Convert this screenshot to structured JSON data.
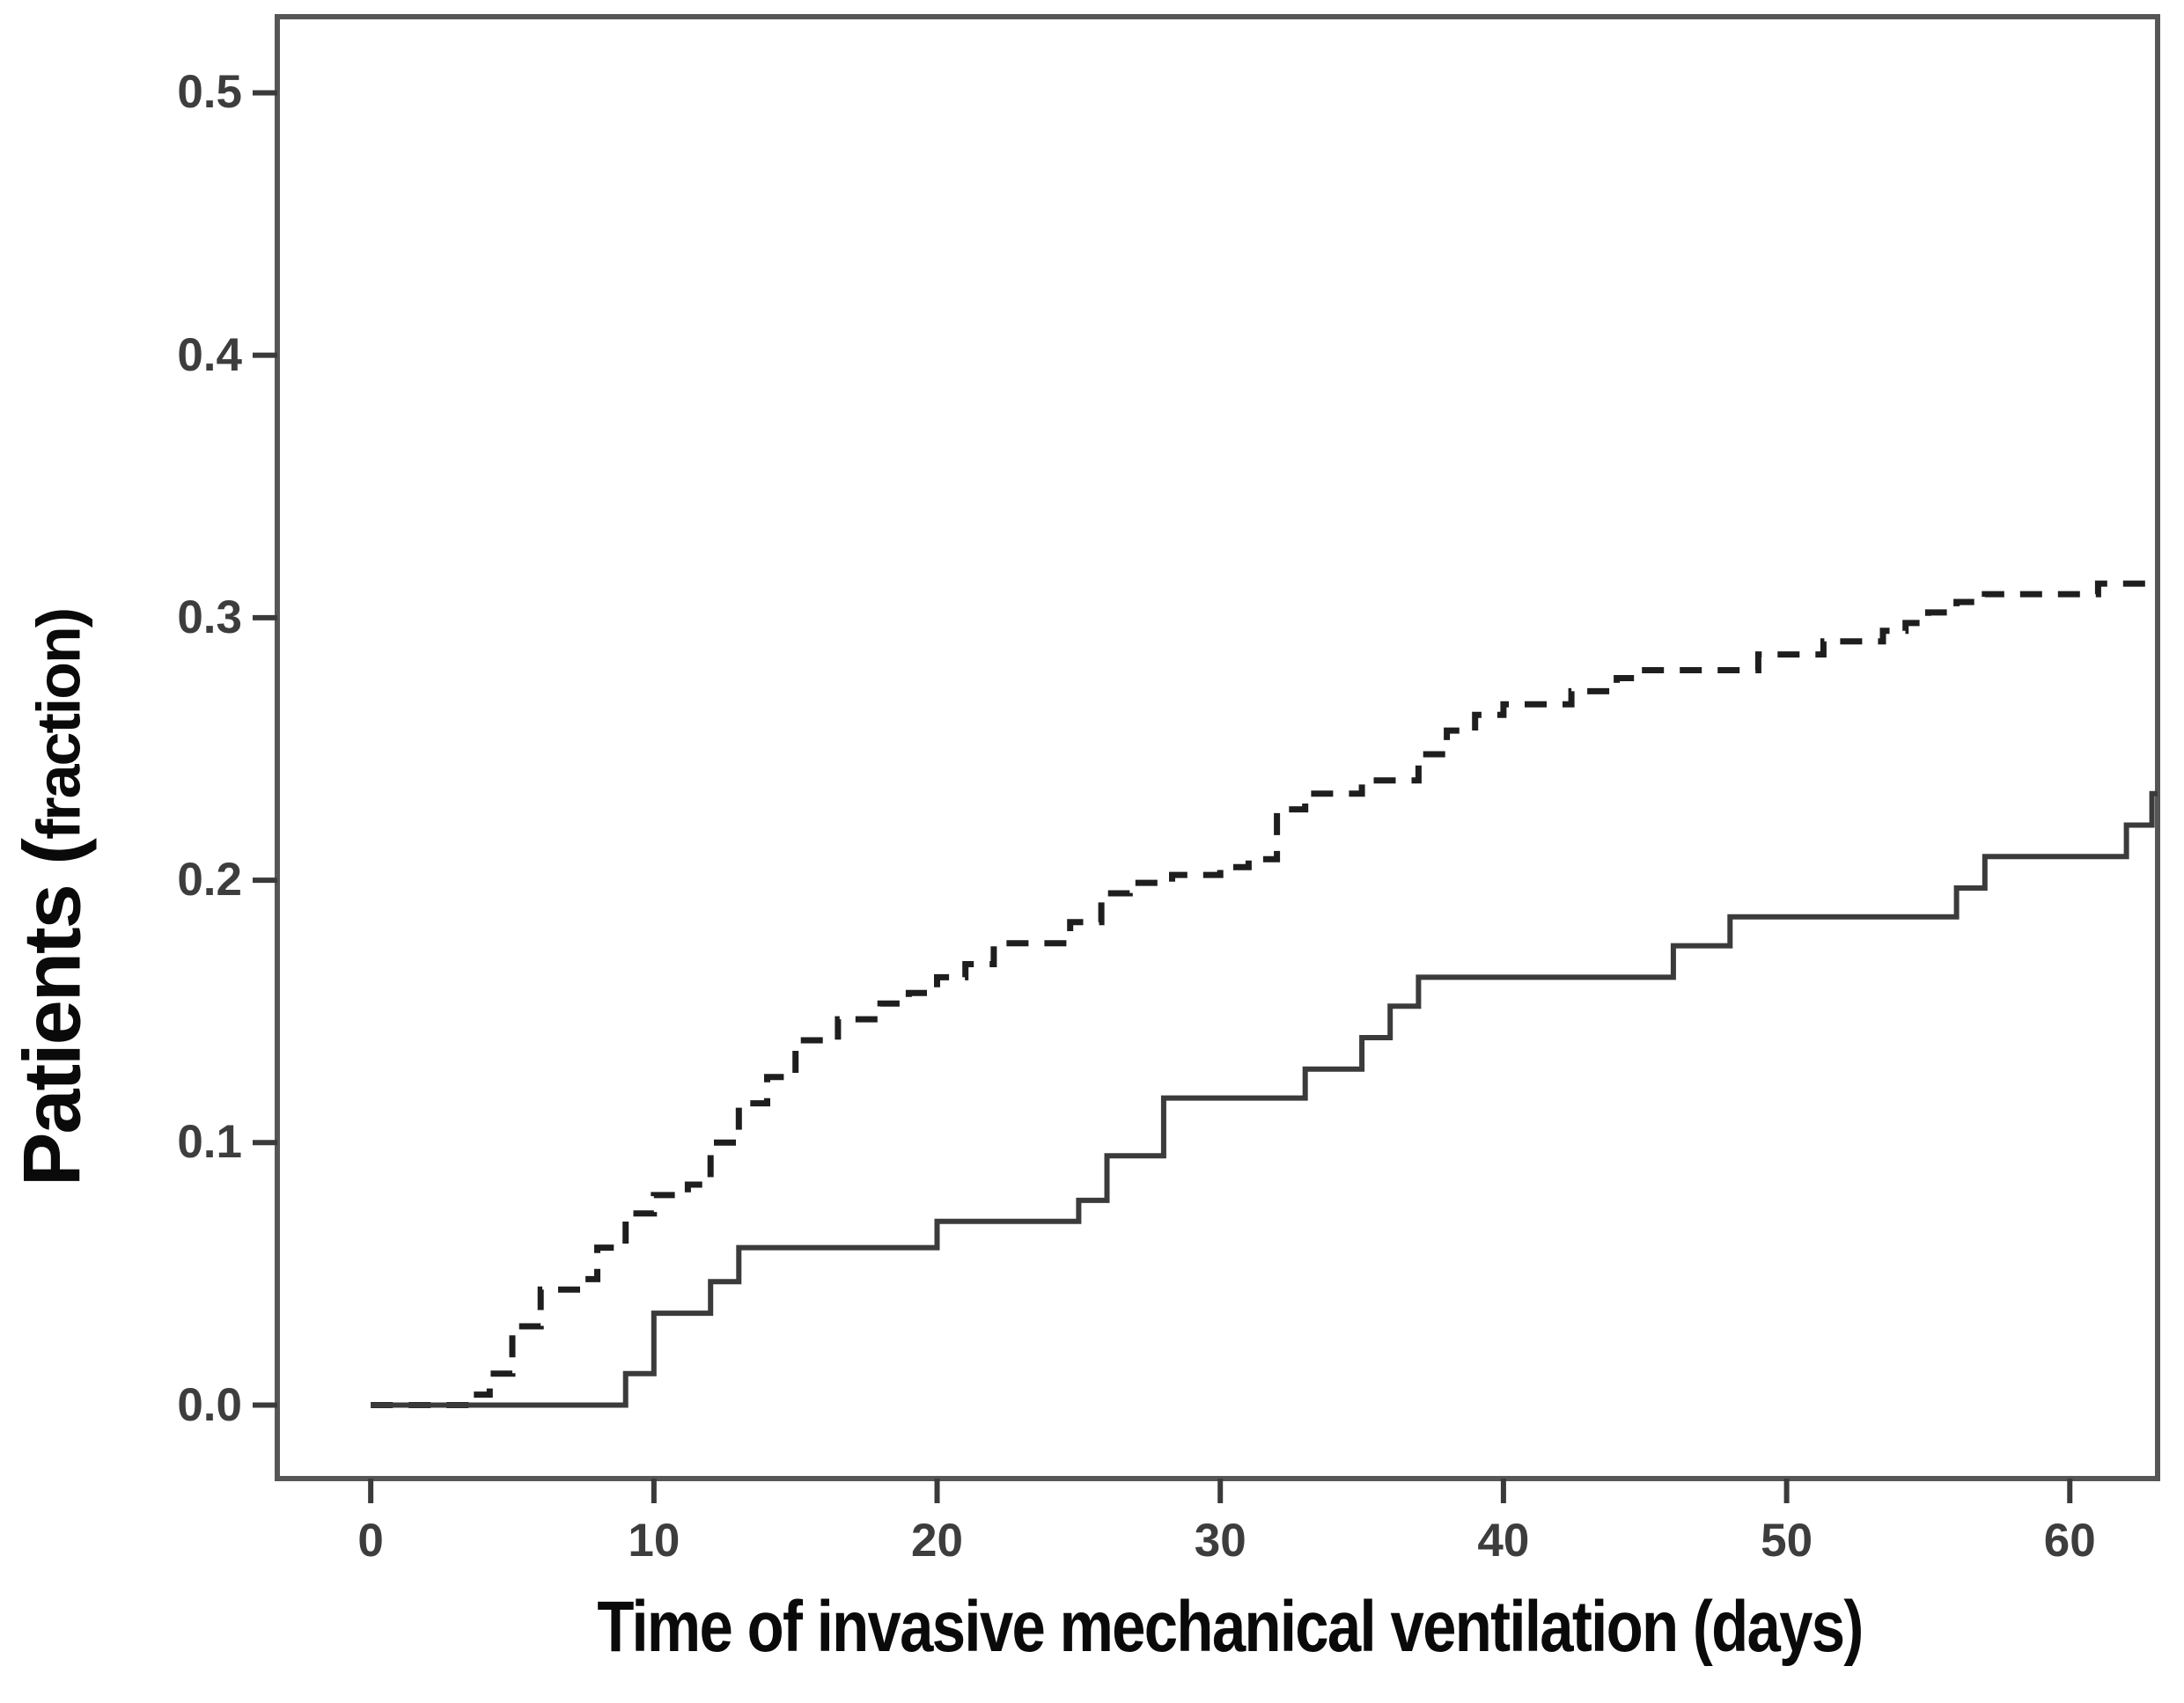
{
  "figure": {
    "background": "#ffffff",
    "frame_color": "#565656",
    "tick_color": "#3a3a3a",
    "tick_label_color": "#3d3d3d",
    "title_color": "#0a0a0a"
  },
  "x_axis": {
    "title": "Time of invasive mechanical ventilation (days)",
    "ticks": [
      {
        "label": "0",
        "value": 0
      },
      {
        "label": "10",
        "value": 10
      },
      {
        "label": "20",
        "value": 20
      },
      {
        "label": "30",
        "value": 30
      },
      {
        "label": "40",
        "value": 40
      },
      {
        "label": "50",
        "value": 50
      },
      {
        "label": "60",
        "value": 60
      }
    ]
  },
  "y_axis": {
    "title_full": "Patients (fraction)",
    "title_prefix": "Patients (",
    "title_suffix": "fraction)",
    "ticks": [
      {
        "label": "0.0",
        "value": 0.0
      },
      {
        "label": "0.1",
        "value": 0.1
      },
      {
        "label": "0.2",
        "value": 0.2
      },
      {
        "label": "0.3",
        "value": 0.3
      },
      {
        "label": "0.4",
        "value": 0.4
      },
      {
        "label": "0.5",
        "value": 0.5
      }
    ]
  },
  "chart_data": {
    "type": "line",
    "subtype": "kaplan-meier-step",
    "title": "",
    "xlabel": "Time of invasive mechanical ventilation (days)",
    "ylabel": "Patients (fraction)",
    "xlim": [
      -3.3,
      63.1
    ],
    "ylim": [
      -0.028,
      0.529
    ],
    "grid": false,
    "legend": "none",
    "x_ticks": [
      0,
      10,
      20,
      30,
      40,
      50,
      60
    ],
    "y_ticks": [
      0.0,
      0.1,
      0.2,
      0.3,
      0.4,
      0.5
    ],
    "series": [
      {
        "name": "upper-curve",
        "style": "dashed",
        "color": "#1e1e1e",
        "stroke_width": 7,
        "dash": [
          25,
          18
        ],
        "steps": [
          [
            0,
            0
          ],
          [
            3.5,
            0.004
          ],
          [
            4.2,
            0.012
          ],
          [
            5,
            0.03
          ],
          [
            6,
            0.044
          ],
          [
            7.5,
            0.048
          ],
          [
            8,
            0.06
          ],
          [
            9,
            0.073
          ],
          [
            10,
            0.08
          ],
          [
            11.2,
            0.084
          ],
          [
            12,
            0.1
          ],
          [
            13,
            0.115
          ],
          [
            14,
            0.125
          ],
          [
            15,
            0.139
          ],
          [
            16.5,
            0.147
          ],
          [
            18,
            0.153
          ],
          [
            19,
            0.157
          ],
          [
            20,
            0.163
          ],
          [
            21,
            0.168
          ],
          [
            22,
            0.176
          ],
          [
            24.7,
            0.184
          ],
          [
            25.8,
            0.195
          ],
          [
            26.8,
            0.199
          ],
          [
            28.3,
            0.202
          ],
          [
            30,
            0.205
          ],
          [
            31,
            0.208
          ],
          [
            32,
            0.227
          ],
          [
            33,
            0.233
          ],
          [
            35,
            0.238
          ],
          [
            37,
            0.248
          ],
          [
            38,
            0.257
          ],
          [
            39,
            0.263
          ],
          [
            40,
            0.267
          ],
          [
            42.4,
            0.272
          ],
          [
            44,
            0.277
          ],
          [
            45,
            0.28
          ],
          [
            49,
            0.286
          ],
          [
            51.3,
            0.291
          ],
          [
            53.4,
            0.295
          ],
          [
            54.2,
            0.298
          ],
          [
            55,
            0.302
          ],
          [
            56,
            0.306
          ],
          [
            57,
            0.309
          ],
          [
            61,
            0.313
          ]
        ],
        "end_x": 63.1
      },
      {
        "name": "lower-curve",
        "style": "solid",
        "color": "#3b3b3b",
        "stroke_width": 6,
        "dash": null,
        "steps": [
          [
            0,
            0
          ],
          [
            9,
            0.012
          ],
          [
            10,
            0.035
          ],
          [
            12,
            0.047
          ],
          [
            13,
            0.06
          ],
          [
            20,
            0.07
          ],
          [
            25,
            0.078
          ],
          [
            26,
            0.095
          ],
          [
            28,
            0.117
          ],
          [
            33,
            0.128
          ],
          [
            35,
            0.14
          ],
          [
            36,
            0.152
          ],
          [
            37,
            0.163
          ],
          [
            46,
            0.175
          ],
          [
            48,
            0.186
          ],
          [
            56,
            0.197
          ],
          [
            57,
            0.209
          ],
          [
            62,
            0.221
          ],
          [
            62.9,
            0.233
          ]
        ],
        "end_x": 63.1
      }
    ]
  }
}
